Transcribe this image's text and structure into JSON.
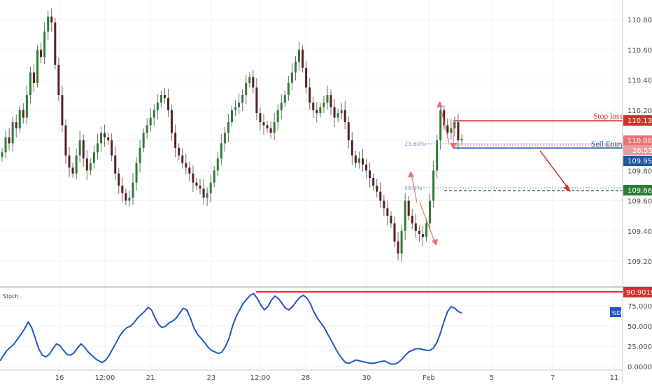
{
  "chart_data": [
    {
      "type": "candlestick",
      "title": "",
      "y_ticks": [
        "110.800",
        "110.600",
        "110.400",
        "110.200",
        "110.000",
        "109.800",
        "109.600",
        "109.400",
        "109.200"
      ],
      "ylim": [
        109.1,
        110.9
      ],
      "x_ticks": [
        "16",
        "12:00",
        "21",
        "23",
        "12:00",
        "28",
        "30",
        "Feb",
        "5",
        "7",
        "11"
      ],
      "series": [
        {
          "name": "price",
          "close": [
            109.92,
            110.02,
            109.98,
            110.12,
            110.08,
            110.2,
            110.15,
            110.3,
            110.45,
            110.38,
            110.6,
            110.55,
            110.72,
            110.82,
            110.78,
            110.5,
            110.3,
            110.1,
            109.9,
            109.82,
            109.78,
            109.9,
            110.0,
            109.88,
            109.8,
            109.85,
            109.92,
            109.98,
            110.05,
            110.02,
            110.0,
            109.9,
            109.78,
            109.7,
            109.65,
            109.6,
            109.62,
            109.72,
            109.85,
            109.95,
            110.05,
            110.1,
            110.15,
            110.2,
            110.25,
            110.3,
            110.28,
            110.2,
            110.05,
            109.95,
            109.9,
            109.85,
            109.82,
            109.78,
            109.72,
            109.7,
            109.68,
            109.62,
            109.65,
            109.72,
            109.8,
            109.88,
            109.98,
            110.05,
            110.12,
            110.2,
            110.22,
            110.25,
            110.3,
            110.38,
            110.42,
            110.35,
            110.18,
            110.12,
            110.1,
            110.08,
            110.05,
            110.12,
            110.2,
            110.25,
            110.3,
            110.38,
            110.45,
            110.52,
            110.6,
            110.48,
            110.35,
            110.25,
            110.2,
            110.18,
            110.22,
            110.25,
            110.3,
            110.22,
            110.15,
            110.18,
            110.2,
            110.12,
            110.0,
            109.9,
            109.85,
            109.88,
            109.84,
            109.8,
            109.75,
            109.7,
            109.66,
            109.6,
            109.55,
            109.5,
            109.45,
            109.33,
            109.25,
            109.4,
            109.6,
            109.5,
            109.45,
            109.4,
            109.38,
            109.36,
            109.45,
            109.6,
            109.8,
            110.0,
            110.2,
            110.1,
            110.05,
            110.08,
            110.12,
            110.0,
            110.01
          ]
        }
      ],
      "annotations": [
        {
          "label": "Stop loss",
          "value": "110.133",
          "color": "#d32f2f"
        },
        {
          "label": "Sell Entry",
          "value": "109.951",
          "color": "#1e56a0"
        },
        {
          "label": "",
          "value": "109.665",
          "color": "#2e7d32"
        },
        {
          "label": "",
          "value": "110.001",
          "color": "#e57373"
        },
        {
          "label": "",
          "value": "26:55",
          "color": "#e57373"
        }
      ],
      "fib_levels": [
        {
          "label": "23.60%",
          "value": 110.0
        },
        {
          "label": "50.0%",
          "value": 109.69
        }
      ]
    },
    {
      "type": "line",
      "title": "Stoch",
      "y_ticks": [
        "75.0000",
        "50.0000",
        "25.0000",
        "0.0000"
      ],
      "ylim": [
        0,
        92
      ],
      "resistance": {
        "value": "90.9019",
        "color": "#d32f2f"
      },
      "series": [
        {
          "name": "%D",
          "values": [
            7,
            14,
            20,
            24,
            28,
            34,
            40,
            47,
            55,
            48,
            35,
            22,
            14,
            12,
            15,
            22,
            28,
            26,
            20,
            15,
            14,
            17,
            23,
            28,
            24,
            18,
            14,
            10,
            7,
            5,
            8,
            14,
            22,
            30,
            38,
            44,
            48,
            50,
            54,
            60,
            64,
            68,
            73,
            70,
            60,
            52,
            48,
            50,
            54,
            56,
            60,
            66,
            72,
            70,
            60,
            48,
            40,
            35,
            30,
            24,
            20,
            18,
            16,
            18,
            25,
            35,
            50,
            62,
            70,
            78,
            83,
            88,
            90,
            84,
            76,
            70,
            74,
            82,
            87,
            84,
            78,
            72,
            70,
            74,
            80,
            85,
            88,
            85,
            78,
            68,
            60,
            54,
            48,
            40,
            32,
            24,
            16,
            10,
            5,
            4,
            6,
            8,
            7,
            6,
            5,
            4,
            4,
            5,
            6,
            7,
            5,
            3,
            3,
            5,
            9,
            14,
            18,
            20,
            22,
            22,
            21,
            20,
            20,
            23,
            30,
            42,
            56,
            68,
            74,
            72,
            68,
            66
          ]
        }
      ]
    }
  ]
}
